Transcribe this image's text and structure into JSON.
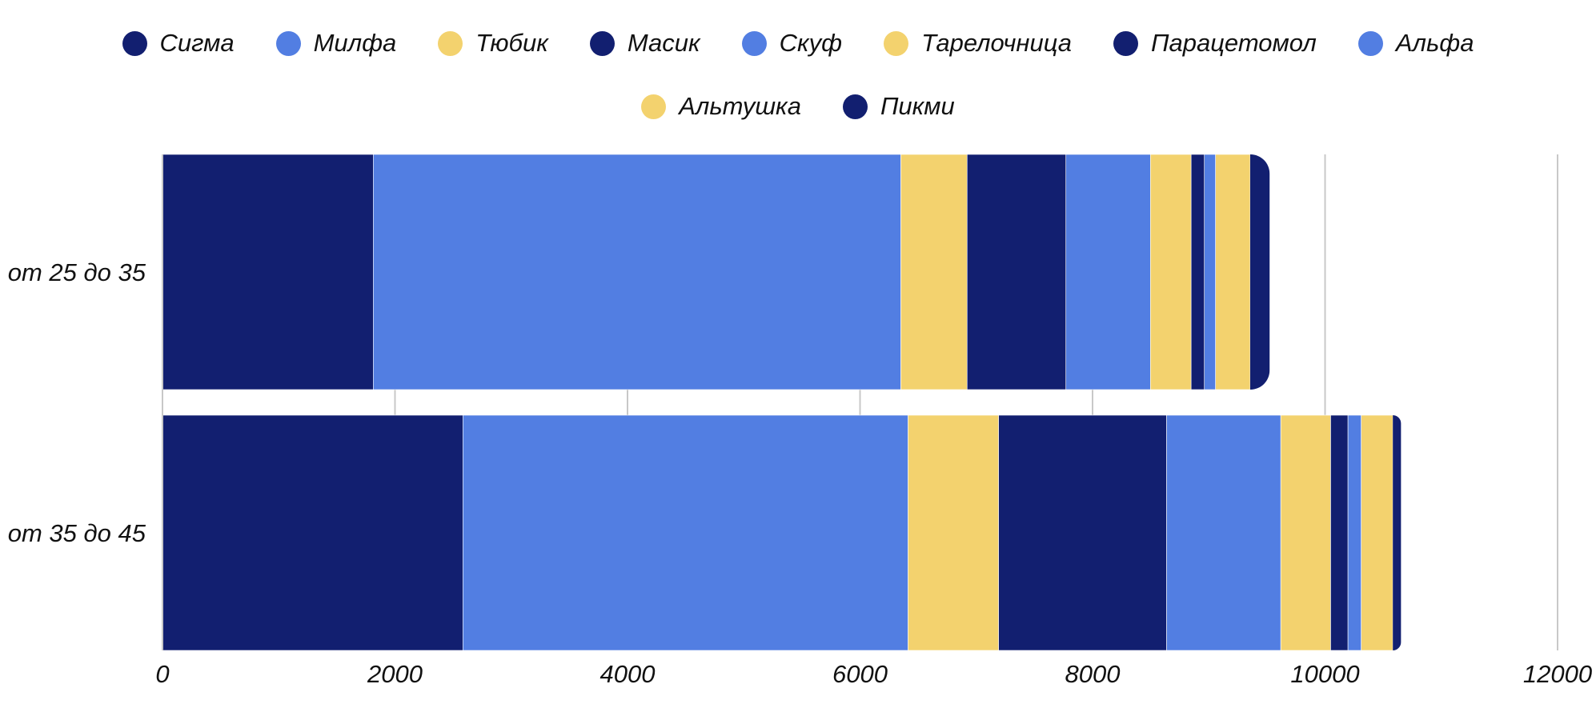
{
  "chart_data": {
    "type": "bar",
    "orientation": "horizontal",
    "stacked": true,
    "title": "",
    "xlabel": "",
    "ylabel": "",
    "xlim": [
      0,
      12000
    ],
    "x_ticks": [
      "0",
      "2000",
      "4000",
      "6000",
      "8000",
      "10000",
      "12000"
    ],
    "grid": "vertical",
    "legend_position": "top",
    "categories": [
      "от 25 до 35",
      "от 35 до 45"
    ],
    "series": [
      {
        "name": "Сигма",
        "color": "#121f70",
        "values": [
          1813,
          2584
        ]
      },
      {
        "name": "Милфа",
        "color": "#527ee2",
        "values": [
          4538,
          3829
        ]
      },
      {
        "name": "Тюбик",
        "color": "#f3d26e",
        "values": [
          570,
          779
        ]
      },
      {
        "name": "Масик",
        "color": "#121f70",
        "values": [
          850,
          1445
        ]
      },
      {
        "name": "Скуф",
        "color": "#527ee2",
        "values": [
          727,
          982
        ]
      },
      {
        "name": "Тарелочница",
        "color": "#f3d26e",
        "values": [
          350,
          429
        ]
      },
      {
        "name": "Парацетомол",
        "color": "#121f70",
        "values": [
          114,
          149
        ]
      },
      {
        "name": "Альфа",
        "color": "#527ee2",
        "values": [
          96,
          114
        ]
      },
      {
        "name": "Альтушка",
        "color": "#f3d26e",
        "values": [
          298,
          272
        ]
      },
      {
        "name": "Пикми",
        "color": "#121f70",
        "values": [
          167,
          70
        ]
      }
    ]
  }
}
